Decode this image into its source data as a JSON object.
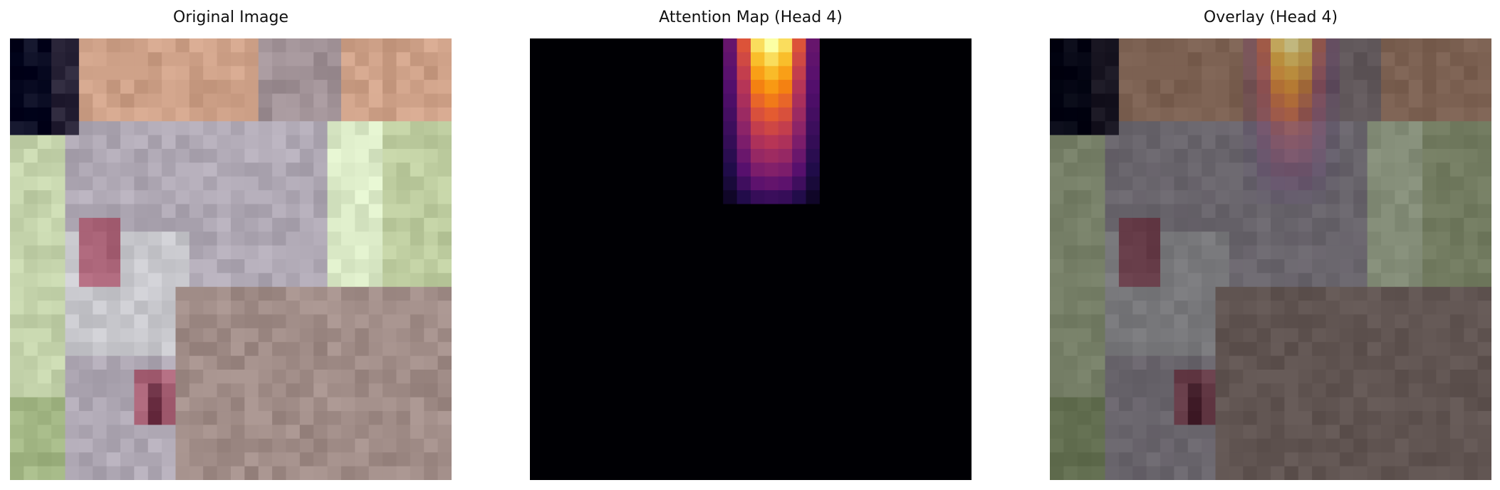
{
  "panels": [
    {
      "title": "Original Image"
    },
    {
      "title": "Attention Map (Head 4)"
    },
    {
      "title": "Overlay (Head 4)"
    }
  ],
  "colormap": "inferno",
  "attention": {
    "grid_size": 32,
    "note_values": "0-1 intensity of visible hot column at top",
    "hot_columns": [
      [
        14,
        0.35
      ],
      [
        15,
        0.7
      ],
      [
        16,
        0.95
      ],
      [
        17,
        1.0
      ],
      [
        18,
        0.95
      ],
      [
        19,
        0.7
      ],
      [
        20,
        0.35
      ]
    ],
    "rows_visible": 12
  }
}
